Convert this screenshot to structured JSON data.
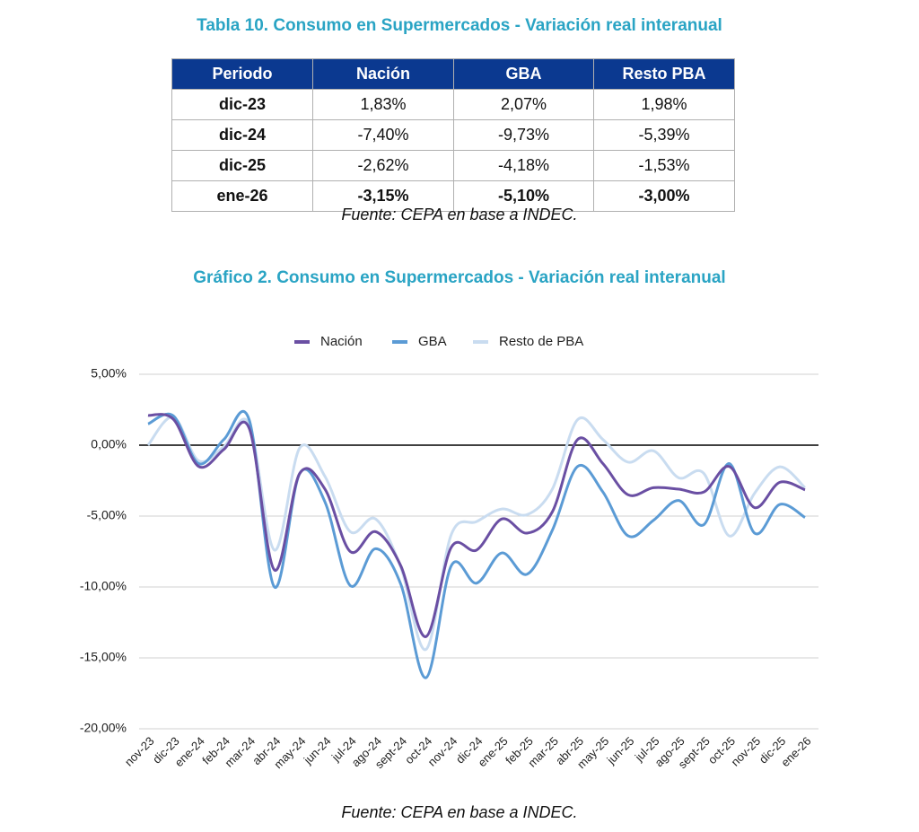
{
  "table_title": "Tabla 10. Consumo en Supermercados - Variación real interanual",
  "table": {
    "header": [
      "Periodo",
      "Nación",
      "GBA",
      "Resto PBA"
    ],
    "rows": [
      [
        "dic-23",
        "1,83%",
        "2,07%",
        "1,98%"
      ],
      [
        "dic-24",
        "-7,40%",
        "-9,73%",
        "-5,39%"
      ],
      [
        "dic-25",
        "-2,62%",
        "-4,18%",
        "-1,53%"
      ],
      [
        "ene-26",
        "-3,15%",
        "-5,10%",
        "-3,00%"
      ]
    ]
  },
  "table_source": "Fuente: CEPA en base a INDEC.",
  "chart_data": {
    "type": "line",
    "title": "Gráfico 2. Consumo en Supermercados - Variación real interanual",
    "categories": [
      "nov-23",
      "dic-23",
      "ene-24",
      "feb-24",
      "mar-24",
      "abr-24",
      "may-24",
      "jun-24",
      "jul-24",
      "ago-24",
      "sept-24",
      "oct-24",
      "nov-24",
      "dic-24",
      "ene-25",
      "feb-25",
      "mar-25",
      "abr-25",
      "may-25",
      "jun-25",
      "jul-25",
      "ago-25",
      "sept-25",
      "oct-25",
      "nov-25",
      "dic-25",
      "ene-26"
    ],
    "series": [
      {
        "name": "Nación",
        "color": "#6a4fa3",
        "values": [
          2.1,
          1.83,
          -1.5,
          -0.3,
          1.2,
          -8.8,
          -2.0,
          -3.1,
          -7.5,
          -6.1,
          -8.5,
          -13.5,
          -7.2,
          -7.4,
          -5.2,
          -6.2,
          -4.7,
          0.4,
          -1.3,
          -3.5,
          -3.0,
          -3.1,
          -3.3,
          -1.5,
          -4.4,
          -2.62,
          -3.15
        ]
      },
      {
        "name": "GBA",
        "color": "#5b9bd5",
        "values": [
          1.5,
          2.07,
          -1.3,
          0.4,
          1.8,
          -10.0,
          -2.0,
          -4.0,
          -9.9,
          -7.3,
          -9.8,
          -16.4,
          -8.5,
          -9.73,
          -7.6,
          -9.1,
          -6.0,
          -1.5,
          -3.3,
          -6.4,
          -5.3,
          -3.9,
          -5.6,
          -1.3,
          -6.2,
          -4.18,
          -5.1
        ]
      },
      {
        "name": "Resto de PBA",
        "color": "#c9dcf0",
        "values": [
          0.0,
          1.98,
          -1.1,
          -0.1,
          1.5,
          -7.4,
          -0.2,
          -2.2,
          -6.1,
          -5.2,
          -8.6,
          -14.4,
          -6.3,
          -5.39,
          -4.5,
          -4.9,
          -3.1,
          1.8,
          0.4,
          -1.2,
          -0.4,
          -2.3,
          -2.0,
          -6.4,
          -3.4,
          -1.53,
          -3.0
        ]
      }
    ],
    "ylim": [
      -20,
      5
    ],
    "yticks": [
      {
        "value": -20,
        "label": "-20,00%"
      },
      {
        "value": -15,
        "label": "-15,00%"
      },
      {
        "value": -10,
        "label": "-10,00%"
      },
      {
        "value": -5,
        "label": "-5,00%"
      },
      {
        "value": 0,
        "label": "0,00%"
      },
      {
        "value": 5,
        "label": "5,00%"
      }
    ],
    "grid": true,
    "legend": "top",
    "source": "Fuente: CEPA en base a INDEC."
  }
}
